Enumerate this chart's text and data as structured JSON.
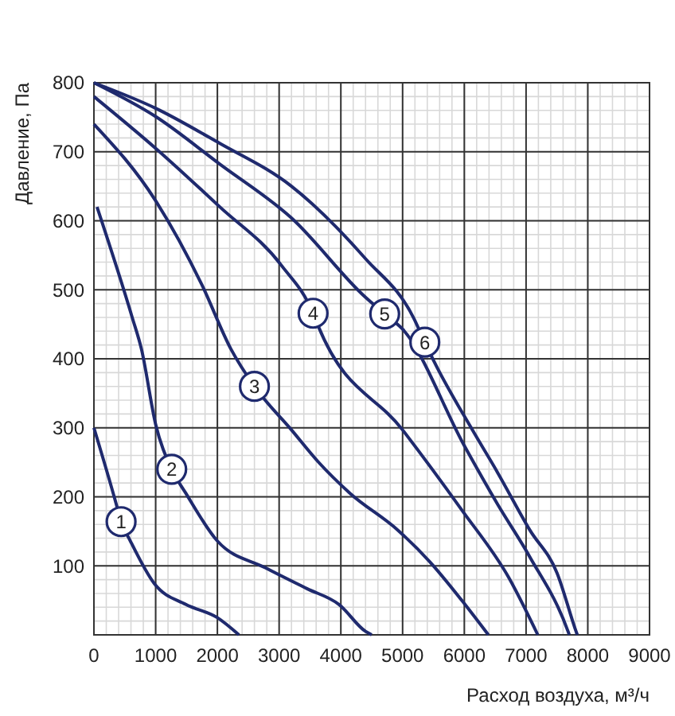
{
  "chart_data": {
    "type": "line",
    "xlabel": "Расход воздуха, м³/ч",
    "ylabel": "Давление, Па",
    "xlim": [
      0,
      9000
    ],
    "xticks": [
      0,
      1000,
      2000,
      3000,
      4000,
      5000,
      6000,
      7000,
      8000,
      9000
    ],
    "ylim": [
      0,
      800
    ],
    "yticks": [
      100,
      200,
      300,
      400,
      500,
      600,
      700,
      800
    ],
    "grid": true,
    "marker": "none",
    "line_style": "solid",
    "series": [
      {
        "color": "#1f2a6e",
        "x": [
          0,
          360,
          440,
          590,
          980,
          1490,
          2000,
          2350
        ],
        "values": [
          300,
          190,
          164,
          136,
          74,
          44,
          25,
          0
        ]
      },
      {
        "color": "#1f2a6e",
        "x": [
          50,
          620,
          770,
          1000,
          1260,
          1490,
          2000,
          2780,
          3450,
          3970,
          4400,
          4500
        ],
        "values": [
          620,
          460,
          414,
          305,
          240,
          205,
          136,
          97,
          67,
          44,
          5,
          0
        ]
      },
      {
        "color": "#1f2a6e",
        "x": [
          0,
          1000,
          1750,
          2220,
          2600,
          3200,
          3630,
          4150,
          4920,
          5440,
          5950,
          6390
        ],
        "values": [
          740,
          629,
          507,
          414,
          360,
          297,
          251,
          205,
          152,
          106,
          51,
          0
        ]
      },
      {
        "color": "#1f2a6e",
        "x": [
          0,
          1000,
          2040,
          3040,
          3550,
          3630,
          5000,
          5950,
          6720,
          7190
        ],
        "values": [
          780,
          705,
          620,
          535,
          466,
          448,
          297,
          182,
          83,
          0
        ]
      },
      {
        "color": "#1f2a6e",
        "x": [
          0,
          1000,
          2040,
          3200,
          4400,
          4710,
          5000,
          6000,
          6540,
          7060,
          7680,
          7700
        ],
        "values": [
          800,
          751,
          682,
          604,
          489,
          465,
          443,
          274,
          189,
          113,
          5,
          0
        ]
      },
      {
        "color": "#1f2a6e",
        "x": [
          0,
          1000,
          2040,
          3200,
          4400,
          5180,
          5360,
          5510,
          6130,
          6540,
          7060,
          7500,
          7810,
          7830
        ],
        "values": [
          800,
          763,
          712,
          650,
          545,
          459,
          424,
          396,
          297,
          235,
          152,
          90,
          5,
          0
        ]
      }
    ],
    "annotations": [
      {
        "text": "1",
        "x": 440,
        "y": 164
      },
      {
        "text": "2",
        "x": 1260,
        "y": 240
      },
      {
        "text": "3",
        "x": 2600,
        "y": 360
      },
      {
        "text": "4",
        "x": 3550,
        "y": 466
      },
      {
        "text": "5",
        "x": 4710,
        "y": 465
      },
      {
        "text": "6",
        "x": 5360,
        "y": 424
      }
    ]
  }
}
